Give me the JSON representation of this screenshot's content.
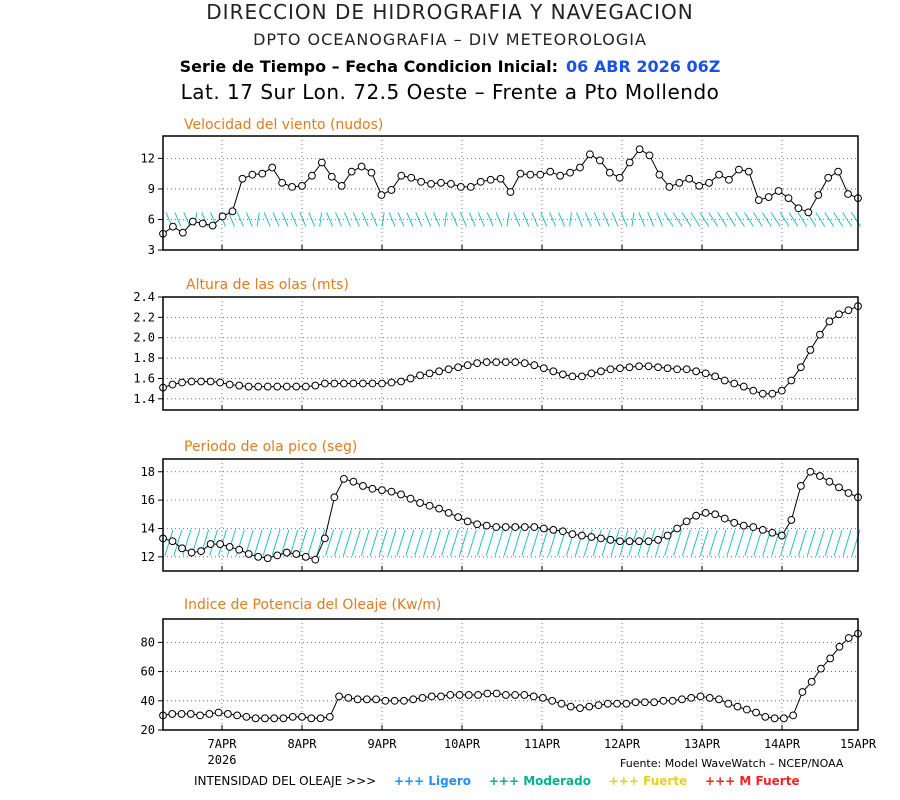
{
  "header": {
    "org": "DIRECCION DE HIDROGRAFIA Y NAVEGACION",
    "dept": "DPTO OCEANOGRAFIA – DIV METEOROLOGIA",
    "series_label": "Serie de Tiempo – Fecha Condicion Inicial:",
    "init_date": "06 ABR 2026 06Z",
    "location": "Lat. 17 Sur  Lon. 72.5 Oeste – Frente a Pto Mollendo"
  },
  "source": "Fuente: Model WaveWatch – NCEP/NOAA",
  "legend": {
    "label": "INTENSIDAD DEL OLEAJE >>>",
    "items": [
      {
        "text": "+++ Ligero",
        "color": "#1e90ff"
      },
      {
        "text": "+++ Moderado",
        "color": "#00b38a"
      },
      {
        "text": "+++ Fuerte",
        "color": "#e6d21e"
      },
      {
        "text": "+++ M Fuerte",
        "color": "#ff2020"
      }
    ]
  },
  "colors": {
    "title": "#e07b1f",
    "arrow": "#1fc0c8",
    "line": "#000000"
  },
  "chart_data": [
    {
      "type": "line",
      "title": "Velocidad del viento (nudos)",
      "x_ticks": [
        "7APR",
        "8APR",
        "9APR",
        "10APR",
        "11APR",
        "12APR",
        "13APR",
        "14APR",
        "15APR"
      ],
      "x_sub": "2026",
      "yticks": [
        "3",
        "6",
        "9",
        "12"
      ],
      "ylim": [
        3,
        14.2
      ],
      "has_direction_arrows": true,
      "values": [
        4.6,
        5.3,
        4.7,
        5.8,
        5.6,
        5.4,
        6.3,
        6.8,
        10,
        10.4,
        10.5,
        11.1,
        9.6,
        9.2,
        9.3,
        10.3,
        11.6,
        10.2,
        9.3,
        10.7,
        11.2,
        10.6,
        8.4,
        8.9,
        10.3,
        10.1,
        9.7,
        9.5,
        9.6,
        9.5,
        9.2,
        9.2,
        9.7,
        9.9,
        10,
        8.7,
        10.5,
        10.4,
        10.4,
        10.7,
        10.3,
        10.6,
        11.1,
        12.4,
        11.8,
        10.6,
        10.1,
        11.6,
        12.9,
        12.3,
        10.4,
        9.2,
        9.6,
        10,
        9.3,
        9.6,
        10.4,
        9.9,
        10.9,
        10.7,
        7.9,
        8.2,
        8.8,
        8.1,
        7.1,
        6.7,
        8.4,
        10.1,
        10.7,
        8.5,
        8.1
      ]
    },
    {
      "type": "line",
      "title": "Altura de las olas (mts)",
      "x_ticks": [
        "7APR",
        "8APR",
        "9APR",
        "10APR",
        "11APR",
        "12APR",
        "13APR",
        "14APR",
        "15APR"
      ],
      "yticks": [
        "1.4",
        "1.6",
        "1.8",
        "2.0",
        "2.2",
        "2.4"
      ],
      "ylim": [
        1.29,
        2.4
      ],
      "has_direction_arrows": false,
      "values": [
        1.51,
        1.54,
        1.56,
        1.57,
        1.57,
        1.57,
        1.56,
        1.54,
        1.53,
        1.52,
        1.52,
        1.52,
        1.52,
        1.52,
        1.52,
        1.52,
        1.53,
        1.55,
        1.55,
        1.55,
        1.55,
        1.55,
        1.55,
        1.55,
        1.56,
        1.57,
        1.6,
        1.63,
        1.65,
        1.67,
        1.69,
        1.71,
        1.73,
        1.75,
        1.76,
        1.76,
        1.76,
        1.76,
        1.75,
        1.73,
        1.7,
        1.67,
        1.64,
        1.62,
        1.62,
        1.65,
        1.67,
        1.69,
        1.7,
        1.71,
        1.72,
        1.72,
        1.71,
        1.7,
        1.69,
        1.69,
        1.67,
        1.65,
        1.62,
        1.58,
        1.55,
        1.52,
        1.48,
        1.45,
        1.45,
        1.48,
        1.58,
        1.71,
        1.88,
        2.03,
        2.16,
        2.23,
        2.27,
        2.31
      ]
    },
    {
      "type": "line",
      "title": "Periodo de ola pico (seg)",
      "x_ticks": [
        "7APR",
        "8APR",
        "9APR",
        "10APR",
        "11APR",
        "12APR",
        "13APR",
        "14APR",
        "15APR"
      ],
      "yticks": [
        "12",
        "14",
        "16",
        "18"
      ],
      "ylim": [
        11,
        18.9
      ],
      "has_direction_arrows": true,
      "values": [
        13.3,
        13.1,
        12.6,
        12.3,
        12.4,
        12.9,
        12.9,
        12.7,
        12.5,
        12.2,
        12.0,
        11.9,
        12.1,
        12.3,
        12.2,
        12.0,
        11.8,
        13.3,
        16.2,
        17.5,
        17.3,
        17.0,
        16.8,
        16.7,
        16.6,
        16.4,
        16.1,
        15.8,
        15.6,
        15.4,
        15.1,
        14.8,
        14.5,
        14.3,
        14.2,
        14.1,
        14.1,
        14.1,
        14.1,
        14.1,
        14.0,
        13.9,
        13.8,
        13.6,
        13.5,
        13.4,
        13.3,
        13.2,
        13.1,
        13.1,
        13.1,
        13.1,
        13.2,
        13.5,
        14.0,
        14.5,
        14.9,
        15.1,
        15.0,
        14.7,
        14.4,
        14.2,
        14.1,
        13.9,
        13.7,
        13.5,
        14.6,
        17.0,
        18.0,
        17.7,
        17.3,
        16.9,
        16.5,
        16.2
      ]
    },
    {
      "type": "line",
      "title": "Indice de Potencia del Oleaje (Kw/m)",
      "x_ticks": [
        "7APR",
        "8APR",
        "9APR",
        "10APR",
        "11APR",
        "12APR",
        "13APR",
        "14APR",
        "15APR"
      ],
      "x_sub": "2026",
      "yticks": [
        "20",
        "40",
        "60",
        "80"
      ],
      "ylim": [
        20,
        96
      ],
      "has_direction_arrows": false,
      "values": [
        30,
        31,
        31,
        31,
        30,
        31,
        32,
        31,
        30,
        29,
        28,
        28,
        28,
        28,
        29,
        29,
        28,
        28,
        29,
        43,
        42,
        41,
        41,
        41,
        40,
        40,
        40,
        41,
        42,
        43,
        43,
        44,
        44,
        44,
        44,
        45,
        45,
        44,
        44,
        44,
        43,
        42,
        40,
        38,
        36,
        35,
        36,
        37,
        38,
        38,
        38,
        39,
        39,
        39,
        40,
        40,
        41,
        42,
        43,
        42,
        41,
        38,
        36,
        34,
        32,
        29,
        28,
        28,
        30,
        46,
        53,
        62,
        69,
        77,
        83,
        86
      ]
    }
  ]
}
